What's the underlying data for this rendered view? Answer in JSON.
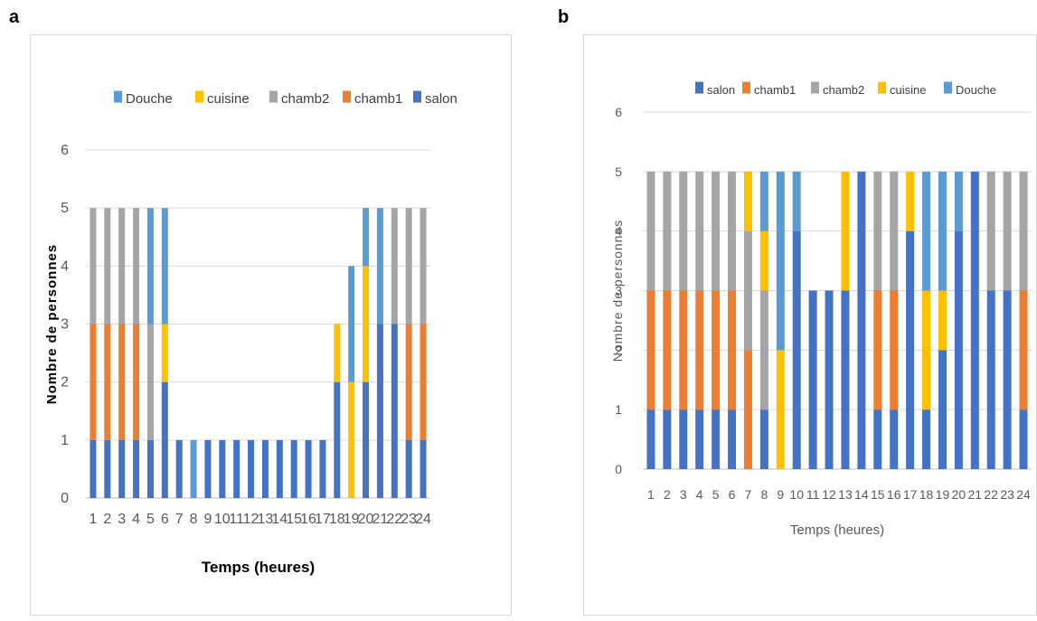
{
  "panels": [
    {
      "letter": "a"
    },
    {
      "letter": "b"
    }
  ],
  "colors": {
    "salon": "#4472c4",
    "chamb1": "#ed7d31",
    "chamb2": "#a5a5a5",
    "cuisine": "#ffc000",
    "Douche": "#5b9bd5"
  },
  "chart_data": [
    {
      "type": "bar",
      "stacked": true,
      "panel": "a",
      "title": "",
      "xlabel": "Temps (heures)",
      "ylabel": "Nombre de personnes",
      "ylim": [
        0,
        6
      ],
      "yticks": [
        0,
        1,
        2,
        3,
        4,
        5,
        6
      ],
      "grid": true,
      "legend_position": "top",
      "legend_order": [
        "Douche",
        "cuisine",
        "chamb2",
        "chamb1",
        "salon"
      ],
      "categories": [
        "1",
        "2",
        "3",
        "4",
        "5",
        "6",
        "7",
        "8",
        "9",
        "10",
        "11",
        "12",
        "13",
        "14",
        "15",
        "16",
        "17",
        "18",
        "19",
        "20",
        "21",
        "22",
        "23",
        "24"
      ],
      "series": [
        {
          "name": "salon",
          "values": [
            1,
            1,
            1,
            1,
            1,
            2,
            1,
            0,
            1,
            1,
            1,
            1,
            1,
            1,
            1,
            1,
            1,
            2,
            0,
            2,
            3,
            3,
            1,
            1
          ]
        },
        {
          "name": "chamb1",
          "values": [
            2,
            2,
            2,
            2,
            0,
            0,
            0,
            0,
            0,
            0,
            0,
            0,
            0,
            0,
            0,
            0,
            0,
            0,
            0,
            0,
            0,
            0,
            2,
            2
          ]
        },
        {
          "name": "chamb2",
          "values": [
            2,
            2,
            2,
            2,
            2,
            0,
            0,
            0,
            0,
            0,
            0,
            0,
            0,
            0,
            0,
            0,
            0,
            0,
            0,
            0,
            0,
            2,
            2,
            2
          ]
        },
        {
          "name": "cuisine",
          "values": [
            0,
            0,
            0,
            0,
            0,
            1,
            0,
            0,
            0,
            0,
            0,
            0,
            0,
            0,
            0,
            0,
            0,
            1,
            2,
            2,
            0,
            0,
            0,
            0
          ]
        },
        {
          "name": "Douche",
          "values": [
            0,
            0,
            0,
            0,
            2,
            2,
            0,
            1,
            0,
            0,
            0,
            0,
            0,
            0,
            0,
            0,
            0,
            0,
            2,
            1,
            2,
            0,
            0,
            0
          ]
        }
      ]
    },
    {
      "type": "bar",
      "stacked": true,
      "panel": "b",
      "title": "",
      "xlabel": "Temps (heures)",
      "ylabel": "Nombre de personnes",
      "ylim": [
        0,
        6
      ],
      "yticks": [
        0,
        1,
        2,
        3,
        4,
        5,
        6
      ],
      "grid": true,
      "legend_position": "top",
      "legend_order": [
        "salon",
        "chamb1",
        "chamb2",
        "cuisine",
        "Douche"
      ],
      "categories": [
        "1",
        "2",
        "3",
        "4",
        "5",
        "6",
        "7",
        "8",
        "9",
        "10",
        "11",
        "12",
        "13",
        "14",
        "15",
        "16",
        "17",
        "18",
        "19",
        "20",
        "21",
        "22",
        "23",
        "24"
      ],
      "series": [
        {
          "name": "salon",
          "values": [
            1,
            1,
            1,
            1,
            1,
            1,
            0,
            1,
            0,
            4,
            3,
            3,
            3,
            5,
            1,
            1,
            4,
            1,
            2,
            4,
            5,
            3,
            3,
            1
          ]
        },
        {
          "name": "chamb1",
          "values": [
            2,
            2,
            2,
            2,
            2,
            2,
            2,
            0,
            0,
            0,
            0,
            0,
            0,
            0,
            2,
            2,
            0,
            0,
            0,
            0,
            0,
            0,
            0,
            2
          ]
        },
        {
          "name": "chamb2",
          "values": [
            2,
            2,
            2,
            2,
            2,
            2,
            2,
            2,
            0,
            0,
            0,
            0,
            0,
            0,
            2,
            2,
            0,
            0,
            0,
            0,
            0,
            2,
            2,
            2
          ]
        },
        {
          "name": "cuisine",
          "values": [
            0,
            0,
            0,
            0,
            0,
            0,
            1,
            1,
            2,
            0,
            0,
            0,
            2,
            0,
            0,
            0,
            1,
            2,
            1,
            0,
            0,
            0,
            0,
            0
          ]
        },
        {
          "name": "Douche",
          "values": [
            0,
            0,
            0,
            0,
            0,
            0,
            0,
            1,
            3,
            1,
            0,
            0,
            0,
            0,
            0,
            0,
            0,
            2,
            2,
            1,
            0,
            0,
            0,
            0
          ]
        }
      ]
    }
  ]
}
